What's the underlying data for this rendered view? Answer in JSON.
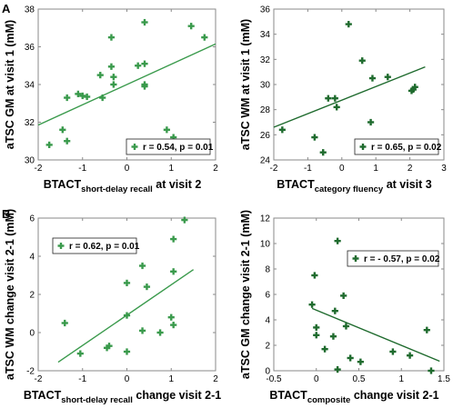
{
  "colors": {
    "dark_green": "#1f6b2e",
    "mid_green": "#3a9a4c",
    "frame": "#8a8a8a"
  },
  "panel_labels": [
    "A",
    "B"
  ],
  "chart_data": [
    {
      "type": "scatter",
      "xlabel": "BTACT",
      "xlabel_sub": "short-delay recall",
      "xlabel_suffix": " at visit 2",
      "ylabel": "aTSC GM at visit 1 (mM)",
      "xlim": [
        -2,
        2
      ],
      "ylim": [
        30,
        38
      ],
      "xticks": [
        -2,
        -1,
        0,
        1,
        2
      ],
      "yticks": [
        30,
        32,
        34,
        36,
        38
      ],
      "legend_text": "r = 0.54, p = 0.01",
      "legend_position": "bottom-right",
      "color": "#3a9a4c",
      "points": [
        {
          "x": -1.75,
          "y": 30.8
        },
        {
          "x": -1.45,
          "y": 31.6
        },
        {
          "x": -1.35,
          "y": 31.0
        },
        {
          "x": -1.35,
          "y": 33.3
        },
        {
          "x": -1.1,
          "y": 33.5
        },
        {
          "x": -1.0,
          "y": 33.4
        },
        {
          "x": -0.9,
          "y": 33.35
        },
        {
          "x": -0.6,
          "y": 34.5
        },
        {
          "x": -0.55,
          "y": 33.3
        },
        {
          "x": -0.35,
          "y": 34.95
        },
        {
          "x": -0.35,
          "y": 36.5
        },
        {
          "x": -0.3,
          "y": 34.0
        },
        {
          "x": -0.3,
          "y": 34.4
        },
        {
          "x": 0.25,
          "y": 35.0
        },
        {
          "x": 0.4,
          "y": 35.1
        },
        {
          "x": 0.4,
          "y": 37.3
        },
        {
          "x": 0.4,
          "y": 34.0
        },
        {
          "x": 0.4,
          "y": 33.9
        },
        {
          "x": 0.9,
          "y": 31.6
        },
        {
          "x": 1.05,
          "y": 31.2
        },
        {
          "x": 1.45,
          "y": 37.1
        },
        {
          "x": 1.75,
          "y": 36.5
        }
      ],
      "fit_line": [
        [
          -2,
          31.85
        ],
        [
          2,
          36.15
        ]
      ]
    },
    {
      "type": "scatter",
      "xlabel": "BTACT",
      "xlabel_sub": "category fluency",
      "xlabel_suffix": " at visit 3",
      "ylabel": "aTSC WM at visit 1 (mM)",
      "xlim": [
        -2,
        3
      ],
      "ylim": [
        24,
        36
      ],
      "xticks": [
        -2,
        -1,
        0,
        1,
        2,
        3
      ],
      "yticks": [
        24,
        26,
        28,
        30,
        32,
        34,
        36
      ],
      "legend_text": "r = 0.65, p = 0.02",
      "legend_position": "bottom-right",
      "color": "#1f6b2e",
      "points": [
        {
          "x": -1.75,
          "y": 26.4
        },
        {
          "x": -0.8,
          "y": 25.8
        },
        {
          "x": -0.55,
          "y": 24.6
        },
        {
          "x": -0.4,
          "y": 28.9
        },
        {
          "x": -0.2,
          "y": 28.9
        },
        {
          "x": -0.15,
          "y": 28.2
        },
        {
          "x": 0.2,
          "y": 34.8
        },
        {
          "x": 0.6,
          "y": 31.9
        },
        {
          "x": 0.85,
          "y": 27.0
        },
        {
          "x": 0.9,
          "y": 30.5
        },
        {
          "x": 1.35,
          "y": 30.6
        },
        {
          "x": 2.05,
          "y": 29.5
        },
        {
          "x": 2.1,
          "y": 29.6
        },
        {
          "x": 2.15,
          "y": 29.8
        }
      ],
      "fit_line": [
        [
          -2,
          26.6
        ],
        [
          2.45,
          31.4
        ]
      ]
    },
    {
      "type": "scatter",
      "xlabel": "BTACT",
      "xlabel_sub": "short-delay recall",
      "xlabel_suffix": " change visit 2-1",
      "ylabel": "aTSC WM change visit 2-1 (mM)",
      "xlim": [
        -2,
        2
      ],
      "ylim": [
        -2,
        6
      ],
      "xticks": [
        -2,
        -1,
        0,
        1,
        2
      ],
      "yticks": [
        -2,
        0,
        2,
        4,
        6
      ],
      "legend_text": "r = 0.62, p = 0.01",
      "legend_position": "top-left",
      "color": "#3a9a4c",
      "points": [
        {
          "x": -1.4,
          "y": 0.5
        },
        {
          "x": -1.05,
          "y": -1.1
        },
        {
          "x": -0.45,
          "y": -0.8
        },
        {
          "x": -0.4,
          "y": -0.7
        },
        {
          "x": 0.0,
          "y": 0.9
        },
        {
          "x": 0.0,
          "y": 2.6
        },
        {
          "x": 0.0,
          "y": -1.0
        },
        {
          "x": 0.35,
          "y": 3.5
        },
        {
          "x": 0.35,
          "y": 0.1
        },
        {
          "x": 0.45,
          "y": 2.4
        },
        {
          "x": 0.75,
          "y": 0.0
        },
        {
          "x": 1.0,
          "y": 0.8
        },
        {
          "x": 1.05,
          "y": 3.2
        },
        {
          "x": 1.05,
          "y": 0.4
        },
        {
          "x": 1.05,
          "y": 4.9
        },
        {
          "x": 1.3,
          "y": 5.9
        }
      ],
      "fit_line": [
        [
          -1.55,
          -1.55
        ],
        [
          1.5,
          3.3
        ]
      ]
    },
    {
      "type": "scatter",
      "xlabel": "BTACT",
      "xlabel_sub": "composite",
      "xlabel_suffix": " change visit 2-1",
      "ylabel": "aTSC GM change visit 2-1 (mM)",
      "xlim": [
        -0.5,
        1.5
      ],
      "ylim": [
        0,
        12
      ],
      "xticks": [
        -0.5,
        0,
        0.5,
        1,
        1.5
      ],
      "yticks": [
        0,
        2,
        4,
        6,
        8,
        10,
        12
      ],
      "legend_text": "r = - 0.57, p = 0.02",
      "legend_position": "top-right",
      "color": "#1f6b2e",
      "points": [
        {
          "x": -0.05,
          "y": 5.2
        },
        {
          "x": -0.02,
          "y": 7.5
        },
        {
          "x": 0.0,
          "y": 2.8
        },
        {
          "x": 0.0,
          "y": 3.4
        },
        {
          "x": 0.1,
          "y": 1.7
        },
        {
          "x": 0.2,
          "y": 2.7
        },
        {
          "x": 0.22,
          "y": 4.7
        },
        {
          "x": 0.25,
          "y": 10.2
        },
        {
          "x": 0.25,
          "y": 0.1
        },
        {
          "x": 0.32,
          "y": 5.9
        },
        {
          "x": 0.35,
          "y": 3.5
        },
        {
          "x": 0.4,
          "y": 1.0
        },
        {
          "x": 0.52,
          "y": 0.7
        },
        {
          "x": 0.9,
          "y": 1.5
        },
        {
          "x": 1.1,
          "y": 1.2
        },
        {
          "x": 1.3,
          "y": 3.2
        },
        {
          "x": 1.35,
          "y": 0.0
        }
      ],
      "fit_line": [
        [
          -0.05,
          4.9
        ],
        [
          1.45,
          0.75
        ]
      ]
    }
  ]
}
